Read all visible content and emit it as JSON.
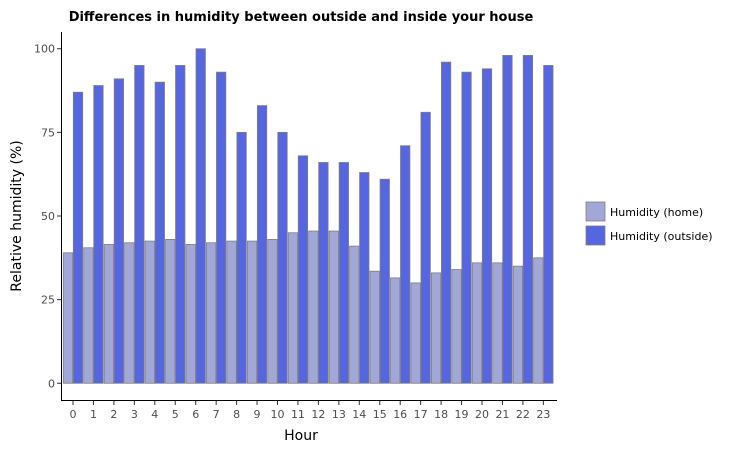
{
  "chart_data": {
    "type": "bar",
    "title": "Differences in humidity between outside and inside your house",
    "xlabel": "Hour",
    "ylabel": "Relative humidity (%)",
    "categories": [
      "0",
      "1",
      "2",
      "3",
      "4",
      "5",
      "6",
      "7",
      "8",
      "9",
      "10",
      "11",
      "12",
      "13",
      "14",
      "15",
      "16",
      "17",
      "18",
      "19",
      "20",
      "21",
      "22",
      "23"
    ],
    "series": [
      {
        "name": "Humidity (home)",
        "color": "#a1a8d8",
        "values": [
          39,
          40.5,
          41.5,
          42,
          42.5,
          43,
          41.5,
          42,
          42.5,
          42.5,
          43,
          45,
          45.5,
          45.5,
          41,
          33.5,
          31.5,
          30,
          33,
          34,
          36,
          36,
          35,
          37.5
        ]
      },
      {
        "name": "Humidity (outside)",
        "color": "#5566e0",
        "values": [
          87,
          89,
          91,
          95,
          90,
          95,
          100,
          93,
          75,
          83,
          75,
          68,
          66,
          66,
          63,
          61,
          71,
          81,
          96,
          93,
          94,
          98,
          98,
          95
        ]
      }
    ],
    "yticks": [
      0,
      25,
      50,
      75,
      100
    ],
    "ylim": [
      -5,
      105
    ],
    "grid": false,
    "legend": "right"
  }
}
